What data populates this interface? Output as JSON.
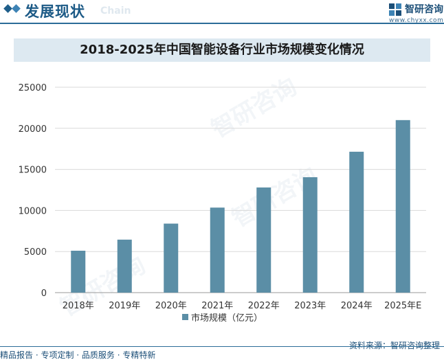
{
  "header": {
    "section_title": "发展现状",
    "section_subtitle": "Chain",
    "brand_name": "智研咨询",
    "brand_url": "www.chyxx.com"
  },
  "chart_data": {
    "type": "bar",
    "title": "2018-2025年中国智能设备行业市场规模变化情况",
    "categories": [
      "2018年",
      "2019年",
      "2020年",
      "2021年",
      "2022年",
      "2023年",
      "2024年",
      "2025年E"
    ],
    "series": [
      {
        "name": "市场规模（亿元）",
        "values": [
          5100,
          6450,
          8400,
          10350,
          12800,
          14050,
          17150,
          21000
        ]
      }
    ],
    "xlabel": "",
    "ylabel": "",
    "ylim": [
      0,
      25000
    ],
    "yticks": [
      0,
      5000,
      10000,
      15000,
      20000,
      25000
    ],
    "grid": true,
    "legend": "bottom-center",
    "bar_color": "#5b8ea6"
  },
  "footer": {
    "left_text": "精品报告 · 专项定制 · 品质服务 · 专精特新",
    "source": "资料来源：智研咨询整理"
  },
  "watermark_text": "智研咨询"
}
